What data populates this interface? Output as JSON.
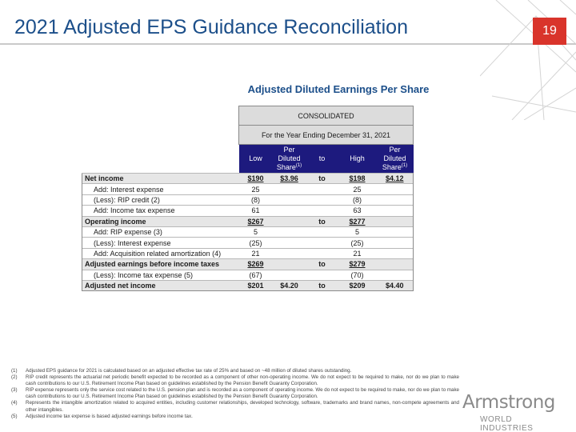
{
  "slide": {
    "title": "2021 Adjusted EPS Guidance Reconciliation",
    "page_number": "19",
    "table_heading": "Adjusted Diluted Earnings Per Share"
  },
  "table": {
    "band1": "CONSOLIDATED",
    "band2": "For the Year Ending December 31, 2021",
    "columns": {
      "low": "Low",
      "pds_line1": "Per",
      "pds_line2": "Diluted",
      "pds_line3": "Share",
      "pds_sup": "(1)",
      "to": "to",
      "high": "High"
    },
    "rows": [
      {
        "label": "Net income",
        "low": "$190",
        "pds_low": "$3.96",
        "to": "to",
        "high": "$198",
        "pds_high": "$4.12"
      },
      {
        "label": "Add: Interest expense",
        "low": "25",
        "pds_low": "",
        "to": "",
        "high": "25",
        "pds_high": ""
      },
      {
        "label": "(Less): RIP credit (2)",
        "low": "(8)",
        "pds_low": "",
        "to": "",
        "high": "(8)",
        "pds_high": ""
      },
      {
        "label": "Add: Income tax expense",
        "low": "61",
        "pds_low": "",
        "to": "",
        "high": "63",
        "pds_high": ""
      },
      {
        "label": "Operating income",
        "low": "$267",
        "pds_low": "",
        "to": "to",
        "high": "$277",
        "pds_high": ""
      },
      {
        "label": "Add: RIP expense (3)",
        "low": "5",
        "pds_low": "",
        "to": "",
        "high": "5",
        "pds_high": ""
      },
      {
        "label": "(Less): Interest expense",
        "low": "(25)",
        "pds_low": "",
        "to": "",
        "high": "(25)",
        "pds_high": ""
      },
      {
        "label": "Add: Acquisition related amortization (4)",
        "low": "21",
        "pds_low": "",
        "to": "",
        "high": "21",
        "pds_high": ""
      },
      {
        "label": "Adjusted earnings before income taxes",
        "low": "$269",
        "pds_low": "",
        "to": "to",
        "high": "$279",
        "pds_high": ""
      },
      {
        "label": "(Less): Income tax expense (5)",
        "low": "(67)",
        "pds_low": "",
        "to": "",
        "high": "(70)",
        "pds_high": ""
      },
      {
        "label": "Adjusted net income",
        "low": "$201",
        "pds_low": "$4.20",
        "to": "to",
        "high": "$209",
        "pds_high": "$4.40"
      }
    ]
  },
  "footnotes": [
    {
      "n": "(1)",
      "text": "Adjusted EPS guidance for 2021 is calculated based on an adjusted effective tax rate of 25% and based on ~48 million of diluted shares outstanding."
    },
    {
      "n": "(2)",
      "text": "RIP credit represents the actuarial net periodic benefit expected to be recorded as a component of other non-operating income. We do not expect to be required to make, nor do we plan to make cash contributions to our U.S. Retirement Income Plan based on guidelines established by the Pension Benefit Guaranty Corporation."
    },
    {
      "n": "(3)",
      "text": "RIP expense represents only the service cost related to the U.S. pension plan and is recorded as a component of operating income. We do not expect to be required to make, nor do we plan to make cash contributions to our U.S. Retirement Income Plan based on guidelines established by the Pension Benefit Guaranty Corporation."
    },
    {
      "n": "(4)",
      "text": "Represents the intangible amortization related to acquired entities, including customer relationships, developed technology, software, trademarks and brand names, non-compete agreements and other intangibles."
    },
    {
      "n": "(5)",
      "text": "Adjusted income tax expense is based adjusted earnings before income tax."
    }
  ],
  "logo": {
    "word": "Armstrong",
    "sub": "WORLD INDUSTRIES"
  },
  "colors": {
    "title": "#1c4f8a",
    "badge": "#d9342b",
    "header_fill": "#1d1a7e",
    "band_fill": "#dcdcdc",
    "shade_fill": "#e6e6e6"
  }
}
